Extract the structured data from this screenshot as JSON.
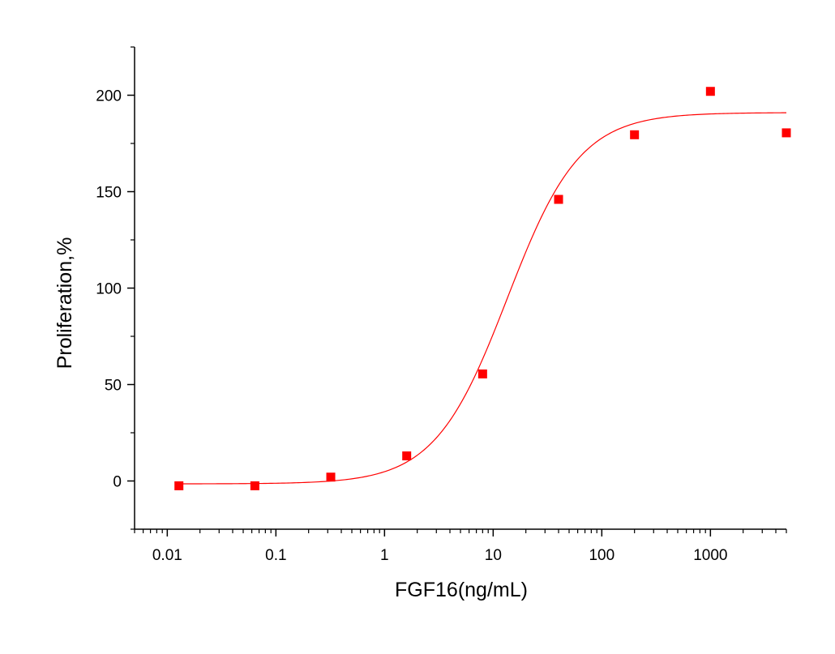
{
  "chart_data": {
    "type": "scatter",
    "title": "",
    "xlabel": "FGF16(ng/mL)",
    "ylabel": "Proliferation,%",
    "x_scale": "log",
    "xlim": [
      0.005,
      5000
    ],
    "ylim": [
      -25,
      225
    ],
    "x_ticks": [
      0.01,
      0.1,
      1,
      10,
      100,
      1000
    ],
    "x_tick_labels": [
      "0.01",
      "0.1",
      "1",
      "10",
      "100",
      "1000"
    ],
    "y_ticks": [
      0,
      50,
      100,
      150,
      200
    ],
    "y_tick_labels": [
      "0",
      "50",
      "100",
      "150",
      "200"
    ],
    "grid": false,
    "legend": "none",
    "series": [
      {
        "marker": "square",
        "color": "#ff0000",
        "x": [
          0.0128,
          0.064,
          0.32,
          1.6,
          8,
          40,
          200,
          1000,
          5000
        ],
        "y": [
          -2.5,
          -2.5,
          2,
          13,
          55.5,
          146,
          179.5,
          202,
          180.5
        ]
      }
    ],
    "fit": {
      "type": "four-parameter logistic",
      "color": "#ff0000",
      "bottom": -1.5,
      "top": 191,
      "ec50": 13.5,
      "hill": 1.3,
      "x_range": [
        0.0128,
        5000
      ]
    }
  }
}
